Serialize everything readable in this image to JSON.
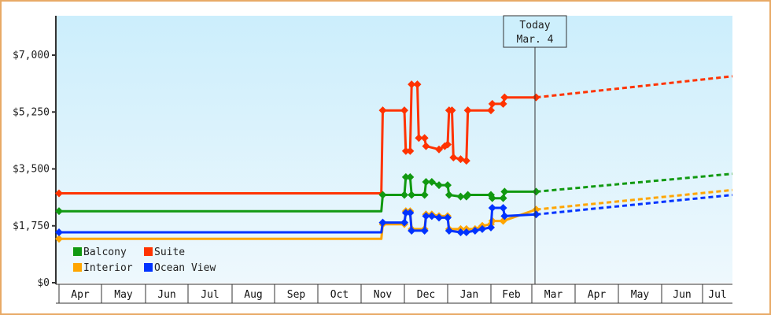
{
  "chart_data": {
    "type": "line",
    "title": "",
    "xlabel": "",
    "ylabel": "",
    "ylim": [
      0,
      8200
    ],
    "y_ticks": [
      {
        "label": "$0",
        "value": 0
      },
      {
        "label": "$1,750",
        "value": 1750
      },
      {
        "label": "$3,500",
        "value": 3500
      },
      {
        "label": "$5,250",
        "value": 5250
      },
      {
        "label": "$7,000",
        "value": 7000
      }
    ],
    "x_months": [
      "Apr",
      "May",
      "Jun",
      "Jul",
      "Aug",
      "Sep",
      "Oct",
      "Nov",
      "Dec",
      "Jan",
      "Feb",
      "Mar",
      "Apr",
      "May",
      "Jun",
      "Jul"
    ],
    "grid": false,
    "legend": {
      "position": "bottom-left inside",
      "entries": [
        {
          "name": "Balcony",
          "color": "#119911"
        },
        {
          "name": "Suite",
          "color": "#ff3300"
        },
        {
          "name": "Interior",
          "color": "#ffa500"
        },
        {
          "name": "Ocean View",
          "color": "#0033ff"
        }
      ]
    },
    "today_marker": {
      "line1": "Today",
      "line2": "Mar. 4"
    },
    "series": [
      {
        "name": "Suite",
        "color": "#ff3300",
        "points": [
          [
            "Apr 1",
            2750
          ],
          [
            "Nov 15",
            2750
          ],
          [
            "Nov 16",
            5300
          ],
          [
            "Dec 1",
            5300
          ],
          [
            "Dec 2",
            4050
          ],
          [
            "Dec 5",
            4050
          ],
          [
            "Dec 6",
            6100
          ],
          [
            "Dec 10",
            6100
          ],
          [
            "Dec 11",
            4450
          ],
          [
            "Dec 15",
            4450
          ],
          [
            "Dec 16",
            4200
          ],
          [
            "Dec 25",
            4100
          ],
          [
            "Dec 29",
            4200
          ],
          [
            "Jan 1",
            4250
          ],
          [
            "Jan 2",
            5300
          ],
          [
            "Jan 4",
            5300
          ],
          [
            "Jan 5",
            3850
          ],
          [
            "Jan 10",
            3800
          ],
          [
            "Jan 14",
            3750
          ],
          [
            "Jan 15",
            5300
          ],
          [
            "Feb 1",
            5300
          ],
          [
            "Feb 2",
            5500
          ],
          [
            "Feb 10",
            5500
          ],
          [
            "Feb 11",
            5700
          ],
          [
            "Mar 4",
            5700
          ]
        ],
        "projection": [
          [
            "Mar 4",
            5700
          ],
          [
            "Jul 31",
            6350
          ]
        ]
      },
      {
        "name": "Balcony",
        "color": "#119911",
        "points": [
          [
            "Apr 1",
            2200
          ],
          [
            "Nov 15",
            2200
          ],
          [
            "Nov 16",
            2700
          ],
          [
            "Dec 1",
            2700
          ],
          [
            "Dec 2",
            3250
          ],
          [
            "Dec 5",
            3250
          ],
          [
            "Dec 6",
            2700
          ],
          [
            "Dec 15",
            2700
          ],
          [
            "Dec 16",
            3100
          ],
          [
            "Dec 20",
            3100
          ],
          [
            "Dec 25",
            3000
          ],
          [
            "Jan 1",
            3000
          ],
          [
            "Jan 2",
            2700
          ],
          [
            "Jan 10",
            2650
          ],
          [
            "Jan 14",
            2650
          ],
          [
            "Jan 15",
            2700
          ],
          [
            "Feb 1",
            2700
          ],
          [
            "Feb 2",
            2600
          ],
          [
            "Feb 10",
            2600
          ],
          [
            "Feb 11",
            2800
          ],
          [
            "Mar 4",
            2800
          ]
        ],
        "projection": [
          [
            "Mar 4",
            2800
          ],
          [
            "Jul 31",
            3350
          ]
        ]
      },
      {
        "name": "Interior",
        "color": "#ffa500",
        "points": [
          [
            "Apr 1",
            1350
          ],
          [
            "Nov 15",
            1350
          ],
          [
            "Nov 16",
            1800
          ],
          [
            "Dec 1",
            1800
          ],
          [
            "Dec 2",
            2200
          ],
          [
            "Dec 5",
            2200
          ],
          [
            "Dec 6",
            1650
          ],
          [
            "Dec 15",
            1650
          ],
          [
            "Dec 16",
            2100
          ],
          [
            "Dec 20",
            2100
          ],
          [
            "Dec 25",
            2050
          ],
          [
            "Jan 1",
            2050
          ],
          [
            "Jan 2",
            1650
          ],
          [
            "Jan 10",
            1650
          ],
          [
            "Jan 14",
            1650
          ],
          [
            "Jan 20",
            1650
          ],
          [
            "Jan 25",
            1750
          ],
          [
            "Feb 1",
            1800
          ],
          [
            "Feb 2",
            1900
          ],
          [
            "Feb 10",
            1900
          ],
          [
            "Mar 4",
            2250
          ]
        ],
        "projection": [
          [
            "Mar 4",
            2250
          ],
          [
            "Jul 31",
            2850
          ]
        ]
      },
      {
        "name": "Ocean View",
        "color": "#0033ff",
        "points": [
          [
            "Apr 1",
            1550
          ],
          [
            "Nov 15",
            1550
          ],
          [
            "Nov 16",
            1850
          ],
          [
            "Dec 1",
            1850
          ],
          [
            "Dec 2",
            2150
          ],
          [
            "Dec 5",
            2150
          ],
          [
            "Dec 6",
            1600
          ],
          [
            "Dec 15",
            1600
          ],
          [
            "Dec 16",
            2050
          ],
          [
            "Dec 20",
            2050
          ],
          [
            "Dec 25",
            2000
          ],
          [
            "Jan 1",
            2000
          ],
          [
            "Jan 2",
            1600
          ],
          [
            "Jan 10",
            1550
          ],
          [
            "Jan 14",
            1550
          ],
          [
            "Jan 20",
            1600
          ],
          [
            "Jan 25",
            1650
          ],
          [
            "Feb 1",
            1700
          ],
          [
            "Feb 2",
            2300
          ],
          [
            "Feb 10",
            2300
          ],
          [
            "Feb 11",
            2050
          ],
          [
            "Mar 4",
            2100
          ]
        ],
        "projection": [
          [
            "Mar 4",
            2100
          ],
          [
            "Jul 31",
            2700
          ]
        ]
      }
    ]
  },
  "colors": {
    "frame": "#e8aa66",
    "plot_bg_top": "#cceefc",
    "plot_bg_bottom": "#eef8fd",
    "axis": "#333333"
  }
}
